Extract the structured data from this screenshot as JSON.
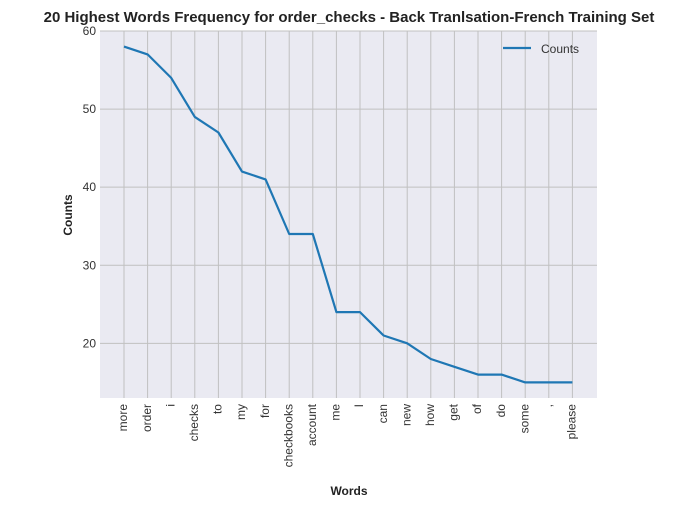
{
  "chart_data": {
    "type": "line",
    "title": "20 Highest Words Frequency for order_checks - Back Tranlsation-French Training Set",
    "xlabel": "Words",
    "ylabel": "Counts",
    "categories": [
      "more",
      "order",
      "i",
      "checks",
      "to",
      "my",
      "for",
      "checkbooks",
      "account",
      "me",
      "I",
      "can",
      "new",
      "how",
      "get",
      "of",
      "do",
      "some",
      ",",
      "please"
    ],
    "series": [
      {
        "name": "Counts",
        "values": [
          58,
          57,
          54,
          49,
          47,
          42,
          41,
          34,
          34,
          24,
          24,
          21,
          20,
          18,
          17,
          16,
          16,
          15,
          15,
          15
        ]
      }
    ],
    "ylim": [
      13,
      60
    ],
    "yticks": [
      20,
      30,
      40,
      50,
      60
    ],
    "grid": true,
    "legend_position": "top-right",
    "colors": {
      "line": "#1f77b4",
      "plot_background": "#eaeaf2",
      "grid": "#c0c0c0"
    }
  }
}
